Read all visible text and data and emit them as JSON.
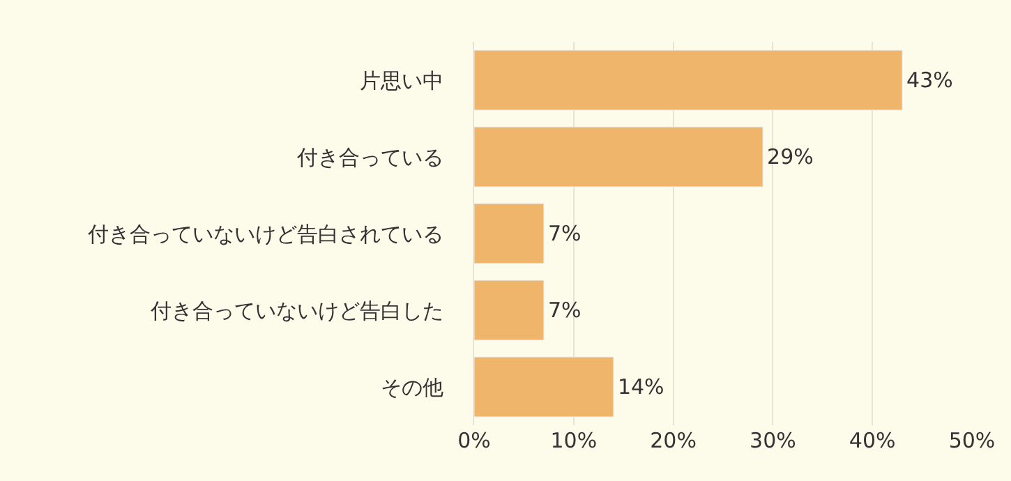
{
  "chart_data": {
    "type": "bar",
    "orientation": "horizontal",
    "categories": [
      "片思い中",
      "付き合っている",
      "付き合っていないけど告白されている",
      "付き合っていないけど告白した",
      "その他"
    ],
    "values": [
      43,
      29,
      7,
      7,
      14
    ],
    "color": "#efb56b",
    "value_labels": [
      "43%",
      "29%",
      "7%",
      "7%",
      "14%"
    ],
    "xlim": [
      0,
      50
    ],
    "xticks": [
      {
        "value": 0,
        "label": "0%"
      },
      {
        "value": 10,
        "label": "10%"
      },
      {
        "value": 20,
        "label": "20%"
      },
      {
        "value": 30,
        "label": "30%"
      },
      {
        "value": 40,
        "label": "40%"
      },
      {
        "value": 50,
        "label": "50%"
      }
    ],
    "grid": "x",
    "legend": false
  }
}
